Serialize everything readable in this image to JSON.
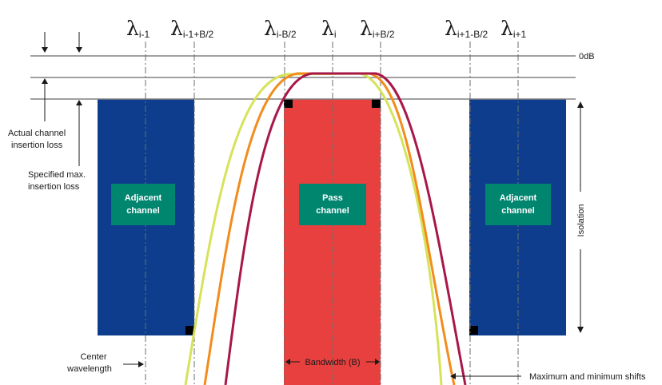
{
  "wavelength_labels": [
    {
      "symbol": "λ",
      "sub": "i-1"
    },
    {
      "symbol": "λ",
      "sub": "i-1+B/2"
    },
    {
      "symbol": "λ",
      "sub": "i-B/2"
    },
    {
      "symbol": "λ",
      "sub": "i"
    },
    {
      "symbol": "λ",
      "sub": "i+B/2"
    },
    {
      "symbol": "λ",
      "sub": "i+1-B/2"
    },
    {
      "symbol": "λ",
      "sub": "i+1"
    }
  ],
  "level_label": "0dB",
  "left_labels": {
    "actual_line1": "Actual channel",
    "actual_line2": "insertion loss",
    "specified_line1": "Specified max.",
    "specified_line2": "insertion loss",
    "center_line1": "Center",
    "center_line2": "wavelength"
  },
  "channels": {
    "adjacent_left_line1": "Adjacent",
    "adjacent_left_line2": "channel",
    "pass_line1": "Pass",
    "pass_line2": "channel",
    "adjacent_right_line1": "Adjacent",
    "adjacent_right_line2": "channel"
  },
  "bandwidth_label": "Bandwidth (B)",
  "isolation_label": "Isolation",
  "shifts_label": "Maximum and minimum shifts",
  "colors": {
    "adjacent": "#0d3d8c",
    "pass": "#e8403f",
    "label_box": "#00856f",
    "curve_yellow": "#d6e35a",
    "curve_orange": "#f28c1c",
    "curve_maroon": "#a8174a",
    "lines": "#808080"
  }
}
